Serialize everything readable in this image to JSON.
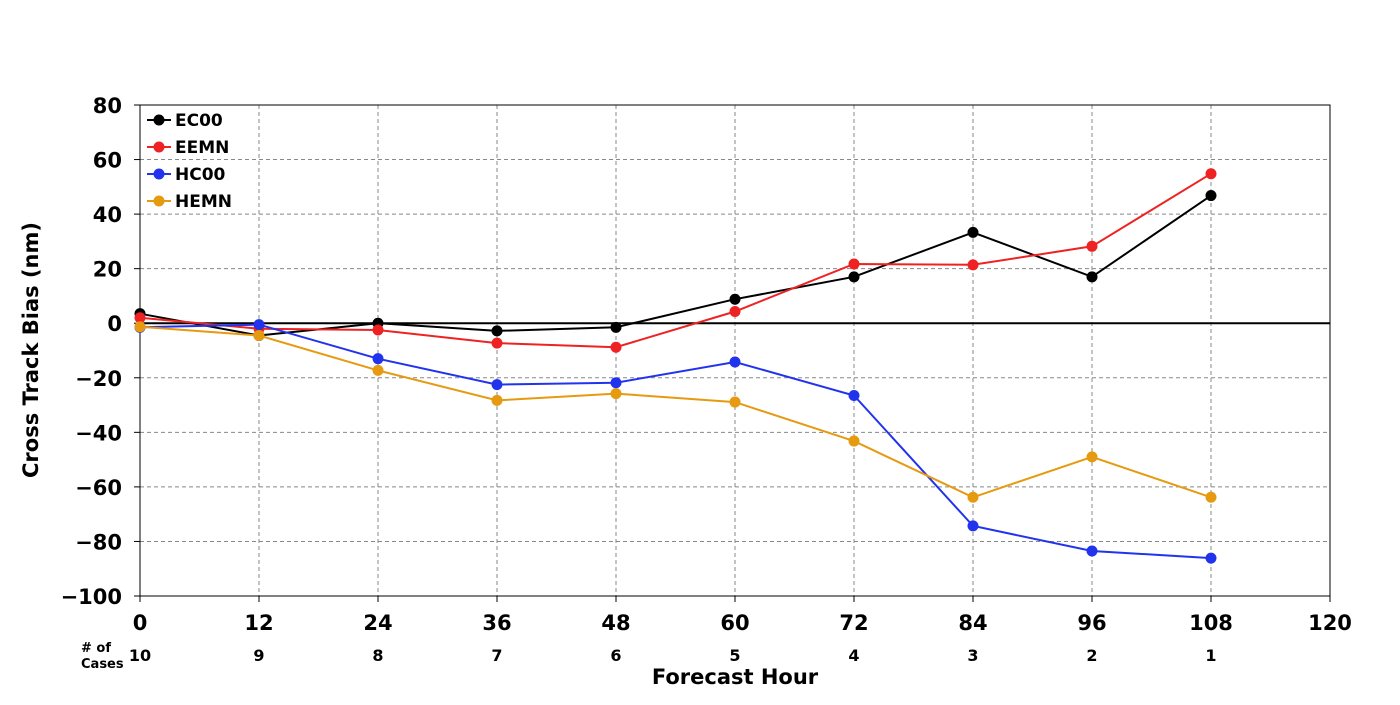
{
  "chart_data": {
    "type": "line",
    "title": "",
    "xlabel": "Forecast Hour",
    "ylabel": "Cross Track Bias (nm)",
    "x": [
      0,
      12,
      24,
      36,
      48,
      60,
      72,
      84,
      96,
      108
    ],
    "xticks": [
      0,
      12,
      24,
      36,
      48,
      60,
      72,
      84,
      96,
      108,
      120
    ],
    "yticks": [
      80,
      60,
      40,
      20,
      0,
      -20,
      -40,
      -60,
      -80,
      -100
    ],
    "xlim": [
      0,
      120
    ],
    "ylim": [
      -100,
      80
    ],
    "grid": true,
    "legend_position": "top-left",
    "cases_label": "# of\nCases",
    "cases": [
      10,
      9,
      8,
      7,
      6,
      5,
      4,
      3,
      2,
      1
    ],
    "series": [
      {
        "name": "EC00",
        "color": "#000000",
        "values": [
          3.5,
          -4.5,
          0,
          -2.8,
          -1.5,
          8.8,
          17,
          33.3,
          17,
          46.8
        ]
      },
      {
        "name": "EEMN",
        "color": "#ee2222",
        "values": [
          2,
          -2,
          -2.5,
          -7.3,
          -8.8,
          4.3,
          21.7,
          21.4,
          28.2,
          54.8
        ]
      },
      {
        "name": "HC00",
        "color": "#2233ee",
        "values": [
          -1.5,
          -0.5,
          -13,
          -22.5,
          -21.8,
          -14.2,
          -26.5,
          -74.3,
          -83.5,
          -86.1
        ]
      },
      {
        "name": "HEMN",
        "color": "#e69a10",
        "values": [
          -1.3,
          -4.5,
          -17.3,
          -28.3,
          -25.8,
          -28.9,
          -43.2,
          -63.8,
          -49,
          -63.8
        ]
      }
    ]
  }
}
